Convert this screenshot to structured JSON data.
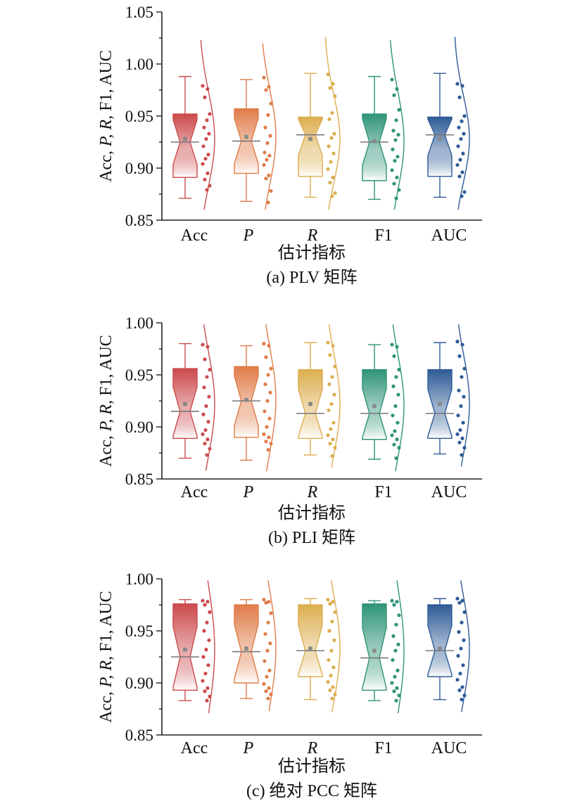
{
  "ylabel": "Acc, P, R, F1, AUC",
  "xlabel": "估计指标",
  "categories": [
    "Acc",
    "P",
    "R",
    "F1",
    "AUC"
  ],
  "italic_categories": [
    "P",
    "R"
  ],
  "colors": [
    "#cc4a4c",
    "#e07c49",
    "#dcae4f",
    "#2f9478",
    "#2e5b96"
  ],
  "chart_data": [
    {
      "type": "box",
      "caption": "(a) PLV 矩阵",
      "ylim": [
        0.85,
        1.05
      ],
      "yticks": [
        "0.85",
        "0.90",
        "0.95",
        "1.00",
        "1.05"
      ],
      "boxes": [
        {
          "name": "Acc",
          "min": 0.871,
          "q1": 0.891,
          "median": 0.925,
          "q3": 0.952,
          "max": 0.988,
          "mean": 0.928
        },
        {
          "name": "P",
          "min": 0.868,
          "q1": 0.895,
          "median": 0.926,
          "q3": 0.957,
          "max": 0.985,
          "mean": 0.93
        },
        {
          "name": "R",
          "min": 0.872,
          "q1": 0.892,
          "median": 0.932,
          "q3": 0.949,
          "max": 0.991,
          "mean": 0.928
        },
        {
          "name": "F1",
          "min": 0.87,
          "q1": 0.888,
          "median": 0.925,
          "q3": 0.952,
          "max": 0.988,
          "mean": 0.926
        },
        {
          "name": "AUC",
          "min": 0.872,
          "q1": 0.892,
          "median": 0.932,
          "q3": 0.949,
          "max": 0.991,
          "mean": 0.928
        }
      ],
      "points": [
        [
          0.979,
          0.976,
          0.968,
          0.952,
          0.946,
          0.939,
          0.933,
          0.928,
          0.921,
          0.913,
          0.909,
          0.904,
          0.895,
          0.889,
          0.883,
          0.879
        ],
        [
          0.987,
          0.978,
          0.975,
          0.962,
          0.951,
          0.939,
          0.931,
          0.924,
          0.915,
          0.912,
          0.908,
          0.903,
          0.893,
          0.89,
          0.878,
          0.867
        ],
        [
          0.99,
          0.981,
          0.977,
          0.969,
          0.953,
          0.947,
          0.933,
          0.929,
          0.921,
          0.914,
          0.906,
          0.899,
          0.891,
          0.886,
          0.876,
          0.873
        ],
        [
          0.985,
          0.976,
          0.97,
          0.956,
          0.946,
          0.936,
          0.932,
          0.927,
          0.918,
          0.911,
          0.907,
          0.898,
          0.891,
          0.885,
          0.879,
          0.871
        ],
        [
          0.981,
          0.979,
          0.968,
          0.95,
          0.945,
          0.939,
          0.933,
          0.928,
          0.921,
          0.914,
          0.908,
          0.903,
          0.896,
          0.892,
          0.877,
          0.873
        ]
      ]
    },
    {
      "type": "box",
      "caption": "(b) PLI 矩阵",
      "ylim": [
        0.85,
        1.0
      ],
      "yticks": [
        "0.85",
        "0.90",
        "0.95",
        "1.00"
      ],
      "boxes": [
        {
          "name": "Acc",
          "min": 0.87,
          "q1": 0.889,
          "median": 0.915,
          "q3": 0.956,
          "max": 0.98,
          "mean": 0.922
        },
        {
          "name": "P",
          "min": 0.868,
          "q1": 0.89,
          "median": 0.925,
          "q3": 0.958,
          "max": 0.978,
          "mean": 0.926
        },
        {
          "name": "R",
          "min": 0.873,
          "q1": 0.889,
          "median": 0.913,
          "q3": 0.955,
          "max": 0.981,
          "mean": 0.922
        },
        {
          "name": "F1",
          "min": 0.869,
          "q1": 0.888,
          "median": 0.913,
          "q3": 0.955,
          "max": 0.979,
          "mean": 0.92
        },
        {
          "name": "AUC",
          "min": 0.874,
          "q1": 0.889,
          "median": 0.913,
          "q3": 0.955,
          "max": 0.981,
          "mean": 0.922
        }
      ],
      "points": [
        [
          0.979,
          0.977,
          0.965,
          0.955,
          0.948,
          0.938,
          0.929,
          0.92,
          0.912,
          0.905,
          0.897,
          0.893,
          0.888,
          0.884,
          0.879,
          0.873
        ],
        [
          0.98,
          0.978,
          0.967,
          0.956,
          0.95,
          0.941,
          0.933,
          0.925,
          0.915,
          0.908,
          0.9,
          0.893,
          0.89,
          0.886,
          0.884,
          0.878
        ],
        [
          0.981,
          0.978,
          0.969,
          0.958,
          0.948,
          0.941,
          0.931,
          0.922,
          0.916,
          0.904,
          0.898,
          0.892,
          0.888,
          0.884,
          0.88,
          0.872
        ],
        [
          0.979,
          0.977,
          0.968,
          0.955,
          0.948,
          0.939,
          0.931,
          0.92,
          0.911,
          0.904,
          0.896,
          0.892,
          0.888,
          0.883,
          0.88,
          0.87
        ],
        [
          0.982,
          0.979,
          0.968,
          0.956,
          0.948,
          0.935,
          0.929,
          0.92,
          0.911,
          0.904,
          0.897,
          0.893,
          0.889,
          0.885,
          0.88,
          0.873
        ]
      ]
    },
    {
      "type": "box",
      "caption": "(c) 绝对 PCC 矩阵",
      "ylim": [
        0.85,
        1.0
      ],
      "yticks": [
        "0.85",
        "0.90",
        "0.95",
        "1.00"
      ],
      "boxes": [
        {
          "name": "Acc",
          "min": 0.883,
          "q1": 0.893,
          "median": 0.925,
          "q3": 0.976,
          "max": 0.98,
          "mean": 0.932
        },
        {
          "name": "P",
          "min": 0.885,
          "q1": 0.9,
          "median": 0.93,
          "q3": 0.975,
          "max": 0.98,
          "mean": 0.933
        },
        {
          "name": "R",
          "min": 0.884,
          "q1": 0.906,
          "median": 0.931,
          "q3": 0.975,
          "max": 0.981,
          "mean": 0.933
        },
        {
          "name": "F1",
          "min": 0.883,
          "q1": 0.893,
          "median": 0.924,
          "q3": 0.976,
          "max": 0.979,
          "mean": 0.931
        },
        {
          "name": "AUC",
          "min": 0.884,
          "q1": 0.906,
          "median": 0.931,
          "q3": 0.975,
          "max": 0.981,
          "mean": 0.933
        }
      ],
      "points": [
        [
          0.979,
          0.978,
          0.975,
          0.968,
          0.958,
          0.95,
          0.941,
          0.932,
          0.925,
          0.917,
          0.909,
          0.902,
          0.895,
          0.892,
          0.887,
          0.883
        ],
        [
          0.98,
          0.978,
          0.977,
          0.967,
          0.958,
          0.947,
          0.938,
          0.931,
          0.921,
          0.912,
          0.906,
          0.899,
          0.895,
          0.892,
          0.889,
          0.885
        ],
        [
          0.98,
          0.978,
          0.976,
          0.968,
          0.959,
          0.95,
          0.941,
          0.931,
          0.922,
          0.915,
          0.907,
          0.901,
          0.896,
          0.893,
          0.889,
          0.885
        ],
        [
          0.979,
          0.978,
          0.975,
          0.965,
          0.956,
          0.945,
          0.937,
          0.931,
          0.922,
          0.912,
          0.906,
          0.9,
          0.895,
          0.892,
          0.888,
          0.883
        ],
        [
          0.981,
          0.979,
          0.977,
          0.968,
          0.958,
          0.949,
          0.941,
          0.933,
          0.926,
          0.917,
          0.909,
          0.903,
          0.896,
          0.893,
          0.888,
          0.884
        ]
      ]
    }
  ]
}
